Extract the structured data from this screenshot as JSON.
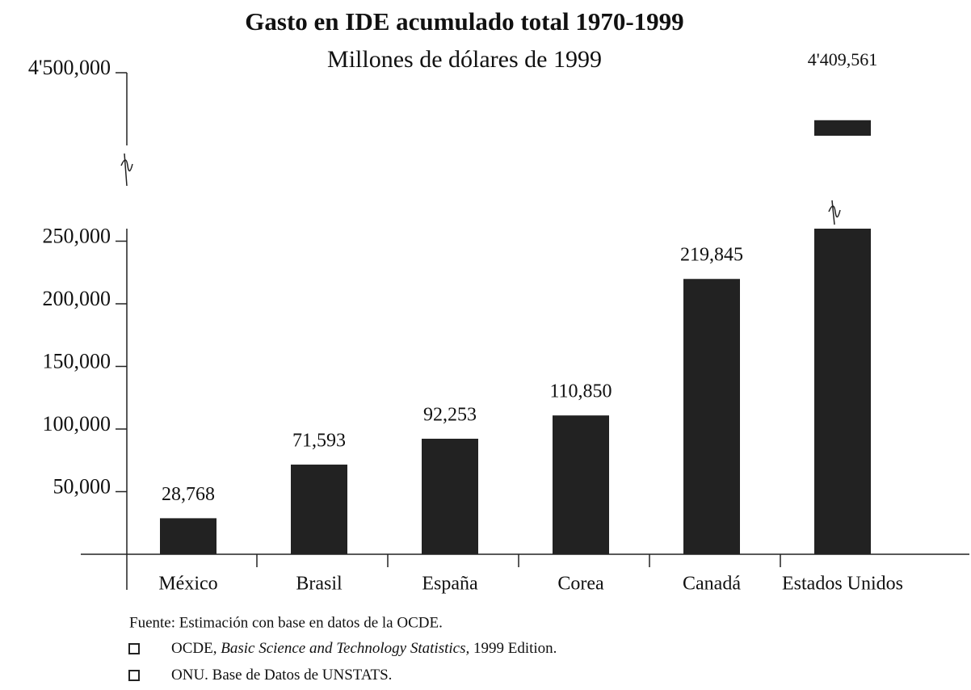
{
  "chart_data": {
    "type": "bar",
    "title": "Gasto en IDE acumulado total 1970-1999",
    "subtitle": "Millones de dólares de 1999",
    "categories": [
      "México",
      "Brasil",
      "España",
      "Corea",
      "Canadá",
      "Estados Unidos"
    ],
    "values": [
      28768,
      71593,
      92253,
      110850,
      219845,
      4409561
    ],
    "value_labels": [
      "28,768",
      "71,593",
      "92,253",
      "110,850",
      "219,845",
      "4'409,561"
    ],
    "color": "#222222",
    "ylim": [
      0,
      260000
    ],
    "yticks": [
      {
        "value": 50000,
        "label": "50,000"
      },
      {
        "value": 100000,
        "label": "100,000"
      },
      {
        "value": 150000,
        "label": "150,000"
      },
      {
        "value": 200000,
        "label": "200,000"
      },
      {
        "value": 250000,
        "label": "250,000"
      }
    ],
    "ylim_upper": [
      4380000,
      4500000
    ],
    "yticks_upper": [
      {
        "value": 4500000,
        "label": "4'500,000"
      }
    ],
    "grid": false
  },
  "footer": {
    "source": "Fuente: Estimación con base en datos de la OCDE.",
    "references": [
      [
        "OCDE, ",
        "Basic Science and Technology Statistics,",
        " 1999 Edition."
      ],
      [
        "ONU. Base de Datos de UNSTATS."
      ]
    ]
  }
}
